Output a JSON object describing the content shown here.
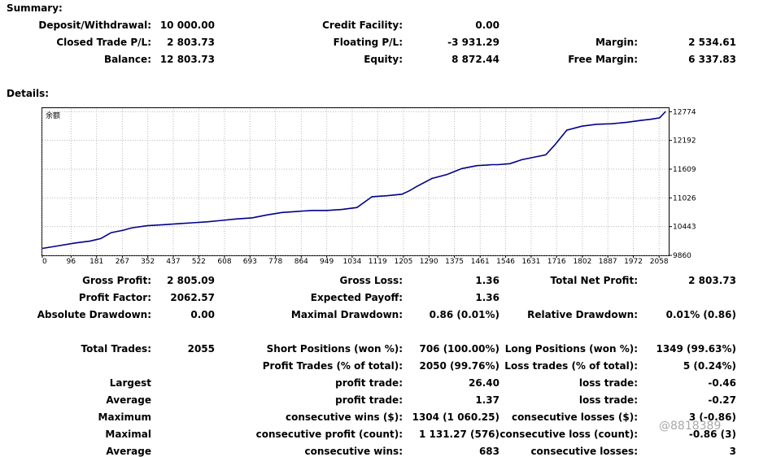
{
  "summary": {
    "heading": "Summary:",
    "deposit_label": "Deposit/Withdrawal:",
    "deposit_value": "10 000.00",
    "credit_label": "Credit Facility:",
    "credit_value": "0.00",
    "closed_label": "Closed Trade P/L:",
    "closed_value": "2 803.73",
    "floating_label": "Floating P/L:",
    "floating_value": "-3 931.29",
    "margin_label": "Margin:",
    "margin_value": "2 534.61",
    "balance_label": "Balance:",
    "balance_value": "12 803.73",
    "equity_label": "Equity:",
    "equity_value": "8 872.44",
    "free_margin_label": "Free Margin:",
    "free_margin_value": "6 337.83"
  },
  "details": {
    "heading": "Details:"
  },
  "chart_data": {
    "type": "line",
    "title": "",
    "series_label": "余额",
    "line_color": "#00008b",
    "grid": true,
    "x_ticks": [
      0,
      96,
      181,
      267,
      352,
      437,
      522,
      608,
      693,
      778,
      864,
      949,
      1034,
      1119,
      1205,
      1290,
      1375,
      1461,
      1546,
      1631,
      1716,
      1802,
      1887,
      1972,
      2058
    ],
    "y_ticks": [
      9860,
      10443,
      11026,
      11609,
      12192,
      12774
    ],
    "xlim": [
      0,
      2090
    ],
    "ylim": [
      9860,
      12830
    ],
    "x": [
      0,
      50,
      110,
      160,
      195,
      230,
      270,
      300,
      350,
      400,
      450,
      500,
      550,
      600,
      650,
      700,
      750,
      800,
      850,
      870,
      900,
      950,
      1000,
      1050,
      1100,
      1150,
      1200,
      1225,
      1250,
      1300,
      1350,
      1400,
      1450,
      1480,
      1500,
      1520,
      1560,
      1600,
      1640,
      1680,
      1710,
      1750,
      1800,
      1850,
      1900,
      1950,
      2000,
      2030,
      2060,
      2080
    ],
    "y": [
      10000,
      10050,
      10110,
      10150,
      10200,
      10320,
      10370,
      10420,
      10460,
      10480,
      10500,
      10520,
      10540,
      10570,
      10600,
      10620,
      10680,
      10730,
      10750,
      10760,
      10770,
      10770,
      10790,
      10830,
      11050,
      11070,
      11100,
      11170,
      11260,
      11420,
      11500,
      11620,
      11680,
      11690,
      11700,
      11700,
      11720,
      11800,
      11850,
      11900,
      12100,
      12400,
      12480,
      12520,
      12530,
      12560,
      12600,
      12620,
      12650,
      12780
    ]
  },
  "stats": {
    "gross_profit_label": "Gross Profit:",
    "gross_profit_value": "2 805.09",
    "gross_loss_label": "Gross Loss:",
    "gross_loss_value": "1.36",
    "total_net_profit_label": "Total Net Profit:",
    "total_net_profit_value": "2 803.73",
    "profit_factor_label": "Profit Factor:",
    "profit_factor_value": "2062.57",
    "expected_payoff_label": "Expected Payoff:",
    "expected_payoff_value": "1.36",
    "abs_dd_label": "Absolute Drawdown:",
    "abs_dd_value": "0.00",
    "max_dd_label": "Maximal Drawdown:",
    "max_dd_value": "0.86 (0.01%)",
    "rel_dd_label": "Relative Drawdown:",
    "rel_dd_value": "0.01% (0.86)",
    "total_trades_label": "Total Trades:",
    "total_trades_value": "2055",
    "short_label": "Short Positions (won %):",
    "short_value": "706 (100.00%)",
    "long_label": "Long Positions (won %):",
    "long_value": "1349 (99.63%)",
    "profit_trades_label": "Profit Trades (% of total):",
    "profit_trades_value": "2050 (99.76%)",
    "loss_trades_label": "Loss trades (% of total):",
    "loss_trades_value": "5 (0.24%)",
    "largest_label": "Largest",
    "largest_profit_label": "profit trade:",
    "largest_profit_value": "26.40",
    "largest_loss_label": "loss trade:",
    "largest_loss_value": "-0.46",
    "average_label": "Average",
    "average_profit_label": "profit trade:",
    "average_profit_value": "1.37",
    "average_loss_label": "loss trade:",
    "average_loss_value": "-0.27",
    "maximum_label": "Maximum",
    "max_cons_wins_label": "consecutive wins ($):",
    "max_cons_wins_value": "1304 (1 060.25)",
    "max_cons_losses_label": "consecutive losses ($):",
    "max_cons_losses_value": "3 (-0.86)",
    "maximal_label": "Maximal",
    "maximal_profit_label": "consecutive profit (count):",
    "maximal_profit_value": "1 131.27 (576)",
    "maximal_loss_label": "consecutive loss (count):",
    "maximal_loss_value": "-0.86 (3)",
    "average2_label": "Average",
    "avg_cons_wins_label": "consecutive wins:",
    "avg_cons_wins_value": "683",
    "avg_cons_losses_label": "consecutive losses:",
    "avg_cons_losses_value": "3"
  },
  "watermark": "@8818389"
}
